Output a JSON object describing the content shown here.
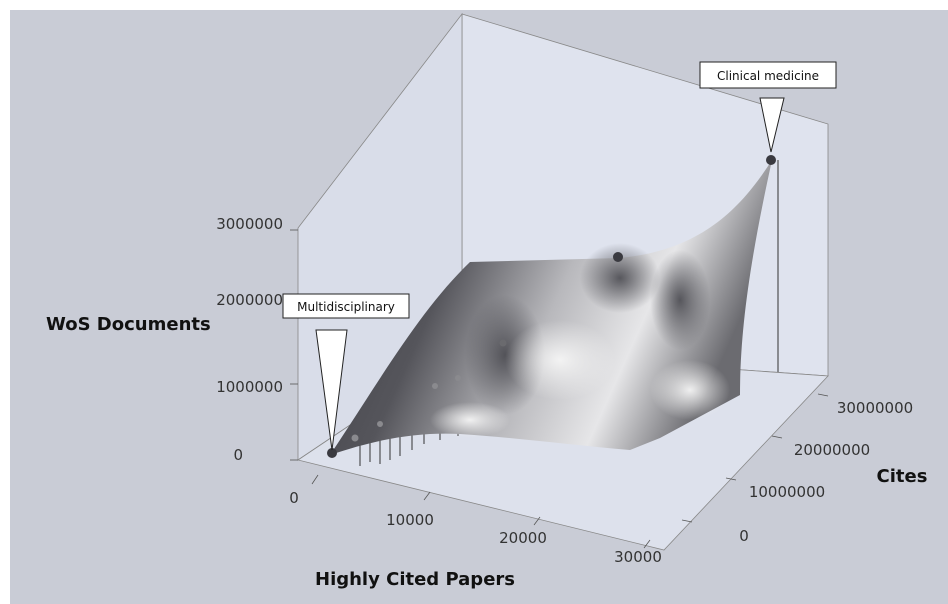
{
  "chart_data": {
    "type": "surface",
    "xlabel": "Highly Cited Papers",
    "ylabel": "Cites",
    "zlabel": "WoS Documents",
    "xlim": [
      0,
      30000
    ],
    "ylim": [
      0,
      30000000
    ],
    "zlim": [
      0,
      3000000
    ],
    "x_ticks": [
      "0",
      "10000",
      "20000",
      "30000"
    ],
    "y_ticks": [
      "0",
      "10000000",
      "20000000",
      "30000000"
    ],
    "z_ticks": [
      "0",
      "1000000",
      "2000000",
      "3000000"
    ],
    "points": [
      {
        "label": "Multidisciplinary",
        "x": 0,
        "y": 0,
        "z": 0
      },
      {
        "label": "Clinical medicine",
        "x": 30000,
        "y": 30000000,
        "z": 3000000
      }
    ],
    "colors": {
      "background": "#c9ccd6",
      "surface_dark": "#3f3f44",
      "surface_light": "#f4f4f4"
    }
  }
}
